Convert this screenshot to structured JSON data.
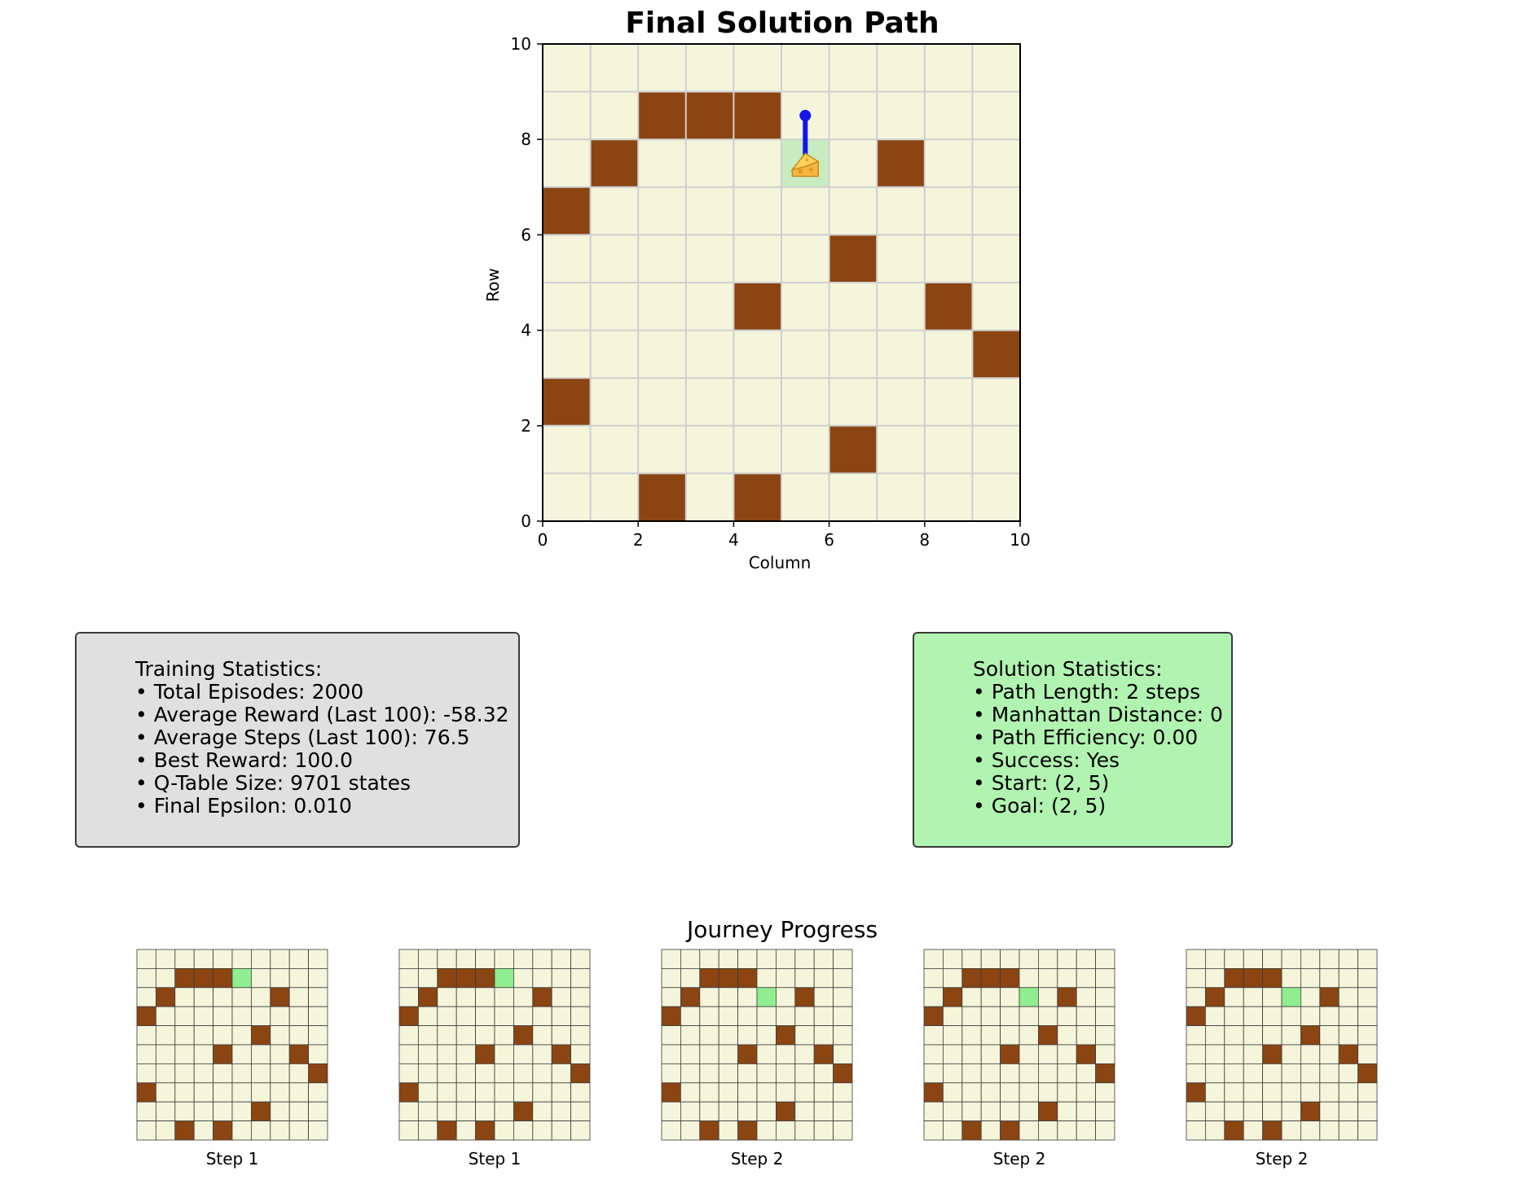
{
  "chart_data": {
    "type": "heatmap",
    "title": "Final Solution Path",
    "xlabel": "Column",
    "ylabel": "Row",
    "xlim": [
      0,
      10
    ],
    "ylim": [
      0,
      10
    ],
    "xticks": [
      "0",
      "2",
      "4",
      "6",
      "8",
      "10"
    ],
    "yticks": [
      "0",
      "2",
      "4",
      "6",
      "8",
      "10"
    ],
    "grid": true,
    "colors": {
      "empty": "#f5f5dc",
      "wall": "#8b4513",
      "highlight": "#c8ecc0",
      "path": "#1515e8",
      "grid": "#cfcfcf",
      "mini_current": "#90ee90"
    },
    "walls": [
      [
        2,
        8
      ],
      [
        3,
        8
      ],
      [
        4,
        8
      ],
      [
        1,
        7
      ],
      [
        7,
        7
      ],
      [
        0,
        6
      ],
      [
        6,
        5
      ],
      [
        4,
        4
      ],
      [
        8,
        4
      ],
      [
        9,
        3
      ],
      [
        0,
        2
      ],
      [
        6,
        1
      ],
      [
        2,
        0
      ],
      [
        4,
        0
      ]
    ],
    "highlight_cell": [
      5,
      7
    ],
    "path": [
      [
        5.5,
        8.5
      ],
      [
        5.5,
        7.5
      ]
    ],
    "goal_icon": "cheese-icon"
  },
  "training_stats": {
    "title": "Training Statistics:",
    "lines": [
      "• Total Episodes: 2000",
      "• Average Reward (Last 100): -58.32",
      "• Average Steps (Last 100): 76.5",
      "• Best Reward: 100.0",
      "• Q-Table Size: 9701 states",
      "• Final Epsilon: 0.010"
    ]
  },
  "solution_stats": {
    "title": "Solution Statistics:",
    "lines": [
      "• Path Length: 2 steps",
      "• Manhattan Distance: 0",
      "• Path Efficiency: 0.00",
      "• Success: Yes",
      "• Start: (2, 5)",
      "• Goal: (2, 5)"
    ]
  },
  "journey": {
    "title": "Journey Progress",
    "steps": [
      {
        "label": "Step 1",
        "current": [
          5,
          1
        ]
      },
      {
        "label": "Step 1",
        "current": [
          5,
          1
        ]
      },
      {
        "label": "Step 2",
        "current": [
          5,
          2
        ]
      },
      {
        "label": "Step 2",
        "current": [
          5,
          2
        ]
      },
      {
        "label": "Step 2",
        "current": [
          5,
          2
        ]
      }
    ]
  }
}
